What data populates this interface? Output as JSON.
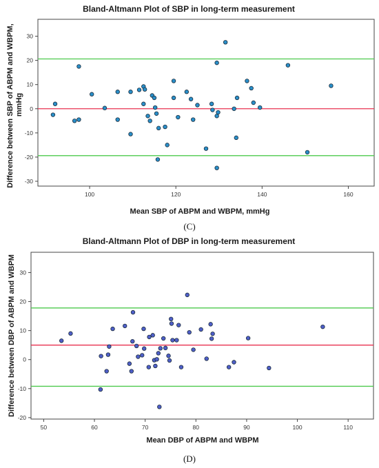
{
  "chart_data": [
    {
      "type": "scatter",
      "title": "Bland-Altmann Plot of SBP in long-term measurement",
      "xlabel": "Mean SBP of ABPM and WBPM, mmHg",
      "ylabel": "Difference between SBP of ABPM and WBPM, mmHg",
      "panel_label": "(C)",
      "xlim": [
        88,
        166
      ],
      "ylim": [
        -32,
        37
      ],
      "xticks": [
        100,
        120,
        140,
        160
      ],
      "yticks": [
        -30,
        -20,
        -10,
        0,
        10,
        20,
        30
      ],
      "mean_line": 0,
      "limits_of_agreement": [
        20.6,
        -19.4
      ],
      "mean_line_color": "#e8304f",
      "limit_line_color": "#4cc94c",
      "point_color": "#2a8fc9",
      "points": [
        [
          91.5,
          -2.5
        ],
        [
          92.0,
          2.0
        ],
        [
          96.5,
          -5.0
        ],
        [
          97.5,
          17.5
        ],
        [
          97.5,
          -4.5
        ],
        [
          100.5,
          6.0
        ],
        [
          103.5,
          0.3
        ],
        [
          106.5,
          7.0
        ],
        [
          106.5,
          -4.5
        ],
        [
          109.5,
          7.0
        ],
        [
          109.5,
          -10.5
        ],
        [
          111.5,
          7.8
        ],
        [
          112.5,
          9.2
        ],
        [
          112.8,
          8.0
        ],
        [
          112.5,
          2.0
        ],
        [
          113.5,
          -3.0
        ],
        [
          114.0,
          -5.0
        ],
        [
          114.5,
          5.5
        ],
        [
          115.0,
          4.5
        ],
        [
          115.2,
          0.5
        ],
        [
          115.5,
          -2.0
        ],
        [
          116.0,
          -8.0
        ],
        [
          115.8,
          -21.0
        ],
        [
          117.5,
          -7.5
        ],
        [
          118.0,
          -15.0
        ],
        [
          119.5,
          11.5
        ],
        [
          119.5,
          4.5
        ],
        [
          120.5,
          -3.5
        ],
        [
          122.5,
          7.0
        ],
        [
          123.5,
          4.0
        ],
        [
          124.0,
          -4.5
        ],
        [
          125.0,
          1.5
        ],
        [
          127.0,
          -16.5
        ],
        [
          128.3,
          2.0
        ],
        [
          128.5,
          -0.5
        ],
        [
          129.5,
          -3.0
        ],
        [
          129.8,
          -1.5
        ],
        [
          129.5,
          19.0
        ],
        [
          129.5,
          -24.5
        ],
        [
          131.5,
          27.5
        ],
        [
          133.5,
          0.0
        ],
        [
          134.0,
          -12.0
        ],
        [
          134.2,
          4.5
        ],
        [
          136.5,
          11.5
        ],
        [
          137.5,
          8.5
        ],
        [
          138.0,
          2.5
        ],
        [
          139.5,
          0.5
        ],
        [
          146.0,
          18.0
        ],
        [
          150.5,
          -18.0
        ],
        [
          156.0,
          9.5
        ]
      ]
    },
    {
      "type": "scatter",
      "title": "Bland-Altmann Plot of DBP in long-term measurement",
      "xlabel": "Mean DBP of ABPM and WBPM",
      "ylabel": "Difference between DBP of ABPM and WBPM",
      "panel_label": "(D)",
      "xlim": [
        47.5,
        115
      ],
      "ylim": [
        -20.5,
        37
      ],
      "xticks": [
        50,
        60,
        70,
        80,
        90,
        100,
        110
      ],
      "yticks": [
        -20,
        -10,
        0,
        10,
        20,
        30
      ],
      "mean_line": 5.0,
      "limits_of_agreement": [
        17.8,
        -9.2
      ],
      "mean_line_color": "#e8304f",
      "limit_line_color": "#4cc94c",
      "point_color": "#4f5fc9",
      "points": [
        [
          53.5,
          6.5
        ],
        [
          55.3,
          9.0
        ],
        [
          61.2,
          -10.3
        ],
        [
          61.3,
          1.2
        ],
        [
          62.4,
          -4.0
        ],
        [
          62.7,
          1.7
        ],
        [
          62.9,
          4.5
        ],
        [
          63.6,
          10.6
        ],
        [
          66.0,
          11.6
        ],
        [
          66.9,
          -1.4
        ],
        [
          67.3,
          -4.0
        ],
        [
          67.5,
          6.3
        ],
        [
          67.6,
          16.3
        ],
        [
          68.3,
          4.7
        ],
        [
          68.6,
          1.0
        ],
        [
          69.4,
          1.5
        ],
        [
          69.7,
          10.6
        ],
        [
          69.8,
          3.8
        ],
        [
          70.7,
          -2.6
        ],
        [
          70.8,
          7.8
        ],
        [
          71.5,
          8.4
        ],
        [
          71.8,
          -0.2
        ],
        [
          72.0,
          -2.2
        ],
        [
          72.3,
          0.1
        ],
        [
          72.6,
          2.2
        ],
        [
          72.8,
          -16.3
        ],
        [
          73.0,
          3.9
        ],
        [
          73.6,
          7.3
        ],
        [
          74.0,
          4.0
        ],
        [
          74.6,
          1.3
        ],
        [
          74.8,
          -0.3
        ],
        [
          75.1,
          14.0
        ],
        [
          75.2,
          12.4
        ],
        [
          75.4,
          6.7
        ],
        [
          76.6,
          11.9
        ],
        [
          76.2,
          6.7
        ],
        [
          77.1,
          -2.6
        ],
        [
          78.3,
          22.3
        ],
        [
          78.7,
          9.4
        ],
        [
          79.5,
          3.4
        ],
        [
          81.0,
          10.4
        ],
        [
          82.1,
          0.3
        ],
        [
          82.9,
          12.2
        ],
        [
          83.1,
          7.2
        ],
        [
          83.3,
          8.9
        ],
        [
          86.5,
          -2.6
        ],
        [
          87.5,
          -0.9
        ],
        [
          90.3,
          7.4
        ],
        [
          94.4,
          -2.9
        ],
        [
          105.0,
          11.3
        ]
      ]
    }
  ]
}
